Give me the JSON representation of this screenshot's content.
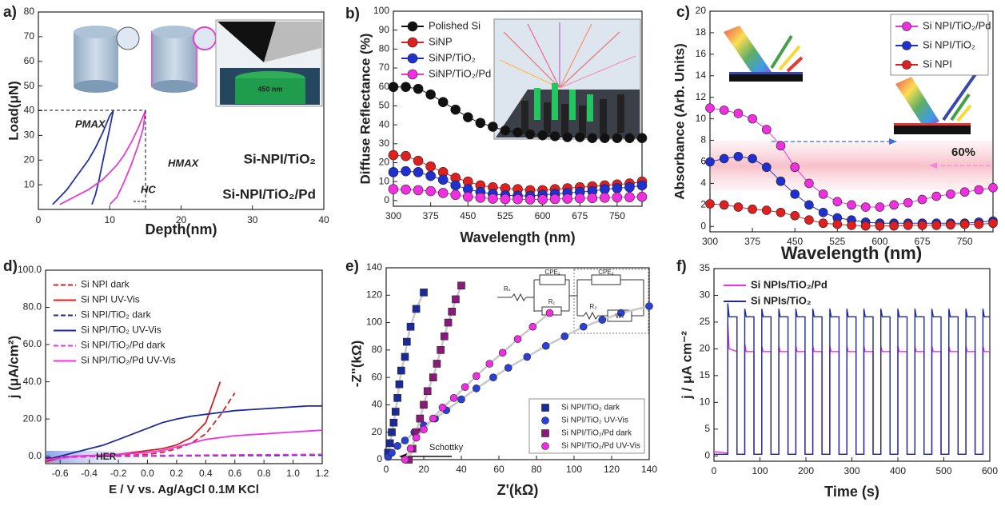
{
  "chart_data": [
    {
      "panel": "a)",
      "type": "line",
      "xlabel": "Depth(nm)",
      "ylabel": "Load(μN)",
      "xlim": [
        0,
        40
      ],
      "ylim": [
        0,
        80
      ],
      "xticks": [
        0,
        10,
        20,
        30,
        40
      ],
      "yticks": [
        10,
        20,
        30,
        40,
        50,
        60,
        70,
        80
      ],
      "legend": "lower right",
      "series": [
        {
          "name": "Si-NPI/TiO₂",
          "color": "#2433a0",
          "x": [
            2,
            3,
            4,
            5,
            6,
            7,
            8,
            9,
            10,
            10.5,
            10,
            9.5,
            9,
            8.5,
            8,
            7.5
          ],
          "values": [
            2,
            5,
            8,
            12,
            16,
            20,
            25,
            31,
            38,
            40,
            33,
            26,
            19,
            12,
            6,
            2
          ]
        },
        {
          "name": "Si-NPI/TiO₂/Pd",
          "color": "#e040d0",
          "x": [
            3,
            5,
            7,
            9,
            10,
            11,
            12,
            13,
            14,
            15,
            14.7,
            14,
            13,
            12,
            11,
            10
          ],
          "values": [
            2,
            5,
            8,
            12,
            15,
            18,
            22,
            27,
            33,
            40,
            33,
            26,
            18,
            11,
            5,
            2
          ]
        }
      ],
      "annotations": [
        "PMAX",
        "HMAX",
        "HC",
        "450 nm"
      ]
    },
    {
      "panel": "b)",
      "type": "line",
      "xlabel": "Wavelength (nm)",
      "ylabel": "Diffuse Reflectance (%)",
      "xlim": [
        300,
        800
      ],
      "ylim": [
        -3,
        100
      ],
      "xticks": [
        300,
        375,
        450,
        525,
        600,
        675,
        750
      ],
      "yticks": [
        0,
        10,
        20,
        30,
        40,
        50,
        60,
        70,
        80,
        90,
        100
      ],
      "legend": "upper left",
      "x": [
        300,
        325,
        350,
        375,
        400,
        425,
        450,
        475,
        500,
        525,
        550,
        575,
        600,
        625,
        650,
        675,
        700,
        725,
        750,
        775,
        800
      ],
      "series": [
        {
          "name": "Polished Si",
          "color": "#111111",
          "marker": "circle",
          "values": [
            60,
            60,
            59,
            56,
            52,
            48,
            44,
            41,
            39,
            37,
            36,
            35,
            34.5,
            34,
            33.5,
            33.5,
            33,
            33,
            33,
            33,
            33
          ]
        },
        {
          "name": "SiNP",
          "color": "#e02020",
          "marker": "circle",
          "values": [
            24,
            23.5,
            21,
            18,
            15,
            12,
            10,
            8,
            7,
            6.5,
            6,
            5.5,
            5.5,
            6,
            6.5,
            7,
            7.5,
            8,
            8.5,
            9,
            10
          ]
        },
        {
          "name": "SiNP/TiO₂",
          "color": "#2030d0",
          "marker": "circle",
          "values": [
            15,
            15.5,
            15,
            13,
            11,
            8,
            6,
            4.5,
            3.5,
            2.8,
            2.5,
            2.5,
            3,
            3.5,
            4,
            4.5,
            5,
            6,
            6.5,
            7,
            8
          ]
        },
        {
          "name": "SiNP/TiO₂/Pd",
          "color": "#f030e0",
          "marker": "circle",
          "values": [
            6,
            5.8,
            5.5,
            5,
            4,
            3,
            2,
            1.5,
            1,
            0.8,
            0.7,
            0.6,
            0.6,
            0.8,
            1,
            1.2,
            1.3,
            1.5,
            1.7,
            1.8,
            2
          ]
        }
      ]
    },
    {
      "panel": "c)",
      "type": "line",
      "xlabel": "Wavelength (nm)",
      "ylabel": "Absorbance (Arb. Units)",
      "xlim": [
        300,
        800
      ],
      "ylim": [
        -0.5,
        20
      ],
      "xticks": [
        300,
        375,
        450,
        525,
        600,
        675,
        750
      ],
      "yticks": [
        0,
        2,
        4,
        6,
        8,
        10,
        12,
        14,
        16,
        18,
        20
      ],
      "legend": "upper right",
      "x": [
        300,
        325,
        350,
        375,
        400,
        425,
        450,
        475,
        500,
        525,
        550,
        575,
        600,
        625,
        650,
        675,
        700,
        725,
        750,
        775,
        800
      ],
      "series": [
        {
          "name": "Si NPI/TiO₂/Pd",
          "color": "#f030e0",
          "marker": "circle",
          "values": [
            11,
            10.8,
            10.5,
            10,
            9,
            7.5,
            5.5,
            4,
            3,
            2.3,
            2,
            1.8,
            1.8,
            2,
            2.2,
            2.5,
            2.8,
            3,
            3.2,
            3.4,
            3.6
          ]
        },
        {
          "name": "Si NPI/TiO₂",
          "color": "#2030d0",
          "marker": "circle",
          "values": [
            6,
            6.3,
            6.5,
            6.3,
            5.5,
            4.2,
            3,
            2,
            1.3,
            0.8,
            0.6,
            0.4,
            0.3,
            0.3,
            0.3,
            0.3,
            0.3,
            0.3,
            0.3,
            0.4,
            0.5
          ]
        },
        {
          "name": "Si NPI",
          "color": "#e02020",
          "marker": "circle",
          "values": [
            2.1,
            2,
            1.8,
            1.6,
            1.5,
            1.3,
            1,
            0.6,
            0.3,
            0.2,
            0.1,
            0.05,
            0.05,
            0.05,
            0.1,
            0.1,
            0.1,
            0.15,
            0.2,
            0.2,
            0.3
          ]
        }
      ],
      "annotations": [
        "60%"
      ]
    },
    {
      "panel": "d)",
      "type": "line",
      "xlabel": "E / V vs. Ag/AgCl 0.1M KCl",
      "ylabel": "j (μA/cm²)",
      "xlim": [
        -0.7,
        1.2
      ],
      "ylim": [
        -4,
        100
      ],
      "xticks": [
        -0.6,
        -0.4,
        -0.2,
        {
          "value": 0,
          "label": "0.0"
        },
        0.2,
        0.4,
        0.6,
        0.8,
        {
          "value": 1,
          "label": "1.0"
        },
        1.2
      ],
      "yticks": [
        {
          "value": 0,
          "label": "0.0"
        },
        {
          "value": 20,
          "label": "20.0"
        },
        {
          "value": 40,
          "label": "40.0"
        },
        {
          "value": 60,
          "label": "60.0"
        },
        {
          "value": 80,
          "label": "80.0"
        },
        {
          "value": 100,
          "label": "100.0"
        }
      ],
      "legend": "upper left",
      "x": [
        -0.7,
        -0.6,
        -0.5,
        -0.4,
        -0.3,
        -0.2,
        -0.1,
        0,
        0.1,
        0.2,
        0.3,
        0.4,
        0.5,
        0.6,
        0.7,
        0.8,
        0.9,
        1,
        1.1,
        1.2
      ],
      "series": [
        {
          "name": "Si NPI dark",
          "color": "#d42020",
          "dashed": true,
          "values": [
            -1,
            -0.5,
            0,
            0,
            0.2,
            0.4,
            0.6,
            1,
            2,
            4,
            7,
            12,
            22,
            34,
            null,
            null,
            null,
            null,
            null,
            null
          ]
        },
        {
          "name": "Si NPI UV-Vis",
          "color": "#d42020",
          "values": [
            -3,
            -1,
            0,
            0.3,
            0.6,
            1,
            2,
            3,
            4,
            6,
            10,
            18,
            40,
            null,
            null,
            null,
            null,
            null,
            null,
            null
          ]
        },
        {
          "name": "Si NPI/TiO₂ dark",
          "color": "#1a2a9a",
          "dashed": true,
          "values": [
            -1,
            -0.5,
            -0.3,
            -0.2,
            -0.1,
            0,
            0,
            0.1,
            0.1,
            0.2,
            0.2,
            0.3,
            0.3,
            0.3,
            0.4,
            0.4,
            0.4,
            0.5,
            0.5,
            0.5
          ]
        },
        {
          "name": "Si NPI/TiO₂ UV-Vis",
          "color": "#1a2a9a",
          "values": [
            -2,
            0,
            2,
            4,
            6,
            9,
            12,
            15,
            18,
            20,
            21.5,
            22.5,
            23.5,
            24.5,
            25,
            25.5,
            26,
            26.5,
            27,
            27
          ]
        },
        {
          "name": "Si NPI/TiO₂/Pd dark",
          "color": "#f030e0",
          "dashed": true,
          "values": [
            -2,
            -1,
            -0.5,
            -0.3,
            0,
            0.1,
            0.2,
            0.3,
            0.4,
            0.5,
            0.5,
            0.6,
            0.7,
            0.7,
            0.8,
            0.8,
            0.9,
            0.9,
            1,
            1
          ]
        },
        {
          "name": "Si NPI/TiO₂/Pd UV-Vis",
          "color": "#f030e0",
          "values": [
            -2,
            -1,
            0,
            0.3,
            0.6,
            1,
            1.5,
            2,
            3,
            5,
            7,
            9,
            10,
            11,
            11.5,
            12,
            12.5,
            13,
            13.5,
            14
          ]
        }
      ],
      "annotations": [
        "HER"
      ]
    },
    {
      "panel": "e)",
      "type": "scatter",
      "xlabel": "Z'(kΩ)",
      "ylabel": "-Z\"(kΩ)",
      "xlim": [
        0,
        140
      ],
      "ylim": [
        0,
        140
      ],
      "xticks": [
        0,
        20,
        40,
        60,
        80,
        100,
        120,
        140
      ],
      "yticks": [
        0,
        20,
        40,
        60,
        80,
        100,
        120,
        140
      ],
      "legend": "lower right",
      "series": [
        {
          "name": "Si NPI/TiO₂ dark",
          "color": "#1a2a9a",
          "marker": "square",
          "x": [
            1,
            2,
            3,
            4,
            5,
            6,
            7,
            8,
            10,
            11,
            13,
            16,
            20
          ],
          "values": [
            5,
            12,
            20,
            27,
            35,
            45,
            55,
            65,
            75,
            86,
            97,
            110,
            122
          ]
        },
        {
          "name": "Si NPI/TiO₂ UV-Vis",
          "color": "#2a40d8",
          "marker": "circle",
          "x": [
            1,
            3,
            6,
            10,
            15,
            20,
            26,
            32,
            40,
            48,
            57,
            65,
            75,
            85,
            95,
            105,
            115,
            125,
            140
          ],
          "values": [
            2,
            5,
            10,
            14,
            20,
            25,
            30,
            36,
            44,
            52,
            60,
            67,
            75,
            83,
            90,
            97,
            102,
            107,
            112
          ]
        },
        {
          "name": "Si NPI/TiO₂/Pd dark",
          "color": "#8a1a7a",
          "marker": "square",
          "x": [
            12,
            14,
            16,
            18,
            20,
            22,
            25,
            27,
            29,
            31,
            33,
            35,
            37,
            40
          ],
          "values": [
            0,
            8,
            20,
            30,
            40,
            50,
            60,
            70,
            80,
            90,
            100,
            108,
            117,
            127
          ]
        },
        {
          "name": "Si NPI/TiO₂/Pd UV-Vis",
          "color": "#f030e0",
          "marker": "circle",
          "x": [
            10,
            13,
            16,
            20,
            25,
            30,
            36,
            42,
            48,
            55,
            62,
            70,
            78,
            87
          ],
          "values": [
            0,
            8,
            16,
            22,
            30,
            38,
            45,
            53,
            61,
            70,
            78,
            88,
            97,
            107
          ]
        }
      ],
      "annotations": [
        "Schottky",
        "Rₛ",
        "CPE₁",
        "R₁",
        "CPE₂",
        "R₂",
        "Wₛ"
      ]
    },
    {
      "panel": "f)",
      "type": "line",
      "xlabel": "Time (s)",
      "ylabel": "j / μA cm⁻²",
      "xlim": [
        0,
        600
      ],
      "ylim": [
        -1,
        35
      ],
      "xticks": [
        0,
        100,
        200,
        300,
        400,
        500,
        600
      ],
      "yticks": [
        0,
        5,
        10,
        15,
        20,
        25,
        30,
        35
      ],
      "legend": "upper left",
      "x": [
        0,
        30,
        30,
        33,
        50,
        50,
        67,
        67,
        70,
        87,
        87,
        104,
        104,
        107,
        124,
        124,
        141,
        141,
        144,
        161,
        161,
        178,
        178,
        181,
        198,
        198,
        215,
        215,
        218,
        235,
        235,
        252,
        252,
        255,
        272,
        272,
        289,
        289,
        292,
        309,
        309,
        326,
        326,
        329,
        346,
        346,
        363,
        363,
        366,
        383,
        383,
        400,
        400,
        403,
        420,
        420,
        437,
        437,
        440,
        457,
        457,
        474,
        474,
        477,
        494,
        494,
        511,
        511,
        514,
        531,
        531,
        548,
        548,
        551,
        568,
        568,
        585,
        585,
        588,
        600
      ],
      "series": [
        {
          "name": "Si NPIs/TiO₂/Pd",
          "color": "#f030e0",
          "values": [
            0.8,
            0.5,
            25,
            20,
            19.5,
            0.3,
            0.3,
            21,
            19.5,
            19.5,
            0.3,
            0.3,
            20.5,
            19.5,
            19.5,
            0.3,
            0.3,
            20.5,
            19.5,
            19.5,
            0.3,
            0.3,
            20.5,
            19.5,
            19.5,
            0.3,
            0.3,
            20.5,
            19.5,
            19.5,
            0.3,
            0.3,
            20.5,
            19.5,
            19.5,
            0.3,
            0.3,
            20.5,
            19.5,
            19.5,
            0.3,
            0.3,
            20.5,
            19.5,
            19.5,
            0.3,
            0.3,
            20.5,
            19.5,
            19.5,
            0.3,
            0.3,
            20.5,
            19.5,
            19.5,
            0.3,
            0.3,
            20.5,
            19.5,
            19.5,
            0.3,
            0.3,
            20.5,
            19.5,
            19.5,
            0.3,
            0.3,
            20.5,
            19.5,
            19.5,
            0.3,
            0.3,
            20.5,
            19.5,
            19.5,
            0.3,
            0.3,
            20.5,
            19.5,
            19.5
          ]
        },
        {
          "name": "Si NPIs/TiO₂",
          "color": "#1a2a9a",
          "values": [
            0.3,
            0.3,
            28.5,
            26,
            26,
            0.3,
            0.3,
            27.5,
            26,
            26,
            0.3,
            0.3,
            27.5,
            26,
            26,
            0.3,
            0.3,
            27.5,
            26,
            26,
            0.3,
            0.3,
            27.5,
            26,
            26,
            0.3,
            0.3,
            27.5,
            26,
            26,
            0.3,
            0.3,
            27.5,
            26,
            26,
            0.3,
            0.3,
            27.5,
            26,
            26,
            0.3,
            0.3,
            27.5,
            26,
            26,
            0.3,
            0.3,
            27.5,
            26,
            26,
            0.3,
            0.3,
            27.5,
            26,
            26,
            0.3,
            0.3,
            27.5,
            26,
            26,
            0.3,
            0.3,
            27.5,
            26,
            26,
            0.3,
            0.3,
            27.5,
            26,
            26,
            0.3,
            0.3,
            27.5,
            26,
            26,
            0.3,
            0.3,
            27.5,
            26,
            26
          ]
        }
      ]
    }
  ]
}
